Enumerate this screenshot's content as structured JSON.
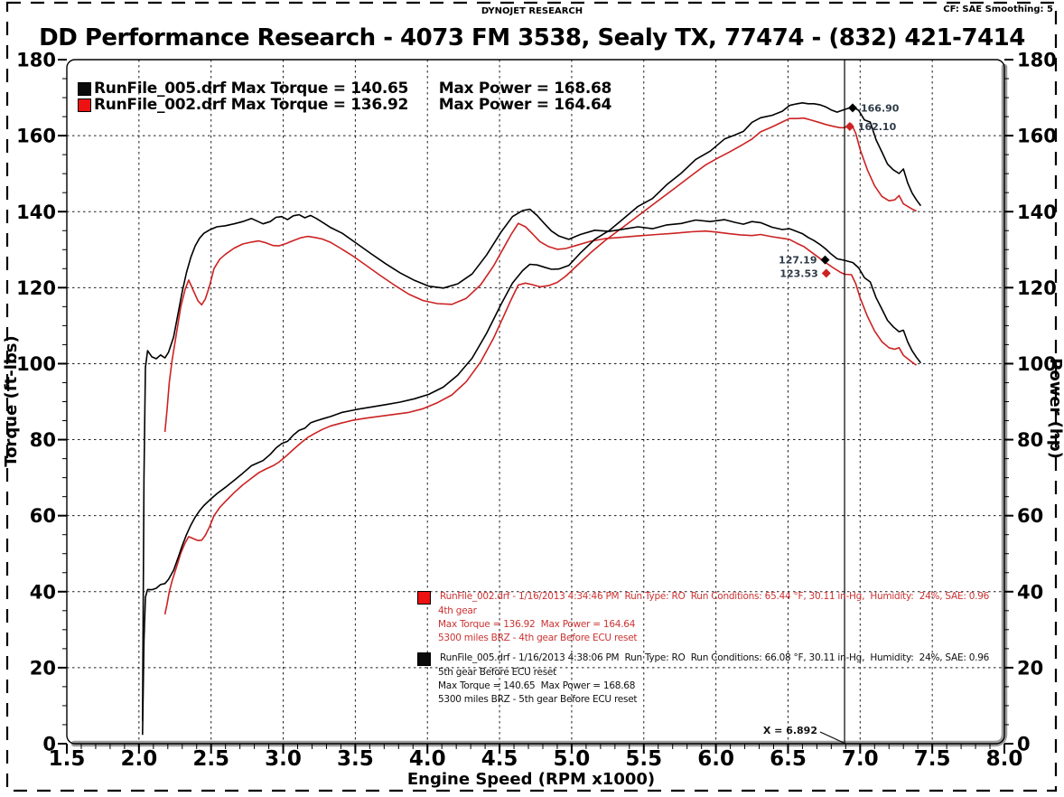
{
  "page": {
    "header_center": "DYNOJET RESEARCH",
    "header_right": "CF: SAE  Smoothing: 5",
    "title": "DD Performance Research - 4073 FM 3538, Sealy TX, 77474 - (832) 421-7414"
  },
  "chart_data": {
    "type": "line",
    "title": "DD Performance Research - 4073 FM 3538, Sealy TX, 77474 - (832) 421-7414",
    "xlabel": "Engine Speed (RPM x1000)",
    "ylabel_left": "Torque (ft-lbs)",
    "ylabel_right": "Power (hp)",
    "xlim": [
      1.5,
      8.0
    ],
    "ylim": [
      0,
      180
    ],
    "x_major_tick": 0.5,
    "x_minor_tick": 0.1,
    "y_major_tick": 20,
    "y_minor_tick": 5,
    "grid": "dashed major gridlines on",
    "legend_position": "top-left",
    "cursor": {
      "x": 6.892,
      "label": "X = 6.892"
    },
    "legend": {
      "rows": [
        {
          "swatch": "#0a0a0a",
          "text": "RunFile_005.drf Max Torque = 140.65      Max Power = 168.68"
        },
        {
          "swatch": "#ee1111",
          "text": "RunFile_002.drf Max Torque = 136.92      Max Power = 164.64"
        }
      ]
    },
    "series": [
      {
        "id": "black_torque",
        "name": "RunFile_005.drf Torque",
        "axis": "left",
        "unit": "ft-lbs",
        "color": "#000000",
        "max": 140.65,
        "points": [
          [
            2.025,
            6
          ],
          [
            2.035,
            70
          ],
          [
            2.045,
            99
          ],
          [
            2.06,
            103.4
          ],
          [
            2.09,
            101.8
          ],
          [
            2.12,
            101.3
          ],
          [
            2.15,
            102.3
          ],
          [
            2.18,
            101.5
          ],
          [
            2.205,
            103
          ],
          [
            2.24,
            107
          ],
          [
            2.27,
            113
          ],
          [
            2.3,
            119
          ],
          [
            2.33,
            124
          ],
          [
            2.36,
            128
          ],
          [
            2.39,
            131
          ],
          [
            2.42,
            133
          ],
          [
            2.45,
            134.3
          ],
          [
            2.49,
            135.2
          ],
          [
            2.54,
            136
          ],
          [
            2.6,
            136.3
          ],
          [
            2.66,
            136.8
          ],
          [
            2.72,
            137.4
          ],
          [
            2.78,
            138.2
          ],
          [
            2.82,
            137.5
          ],
          [
            2.86,
            136.8
          ],
          [
            2.91,
            137.4
          ],
          [
            2.95,
            138.5
          ],
          [
            2.99,
            138.7
          ],
          [
            3.03,
            137.9
          ],
          [
            3.07,
            138.9
          ],
          [
            3.11,
            139.2
          ],
          [
            3.15,
            138.4
          ],
          [
            3.19,
            139
          ],
          [
            3.23,
            138.2
          ],
          [
            3.28,
            137
          ],
          [
            3.33,
            135.8
          ],
          [
            3.41,
            134.3
          ],
          [
            3.51,
            131.6
          ],
          [
            3.61,
            128.9
          ],
          [
            3.71,
            126.3
          ],
          [
            3.81,
            123.9
          ],
          [
            3.91,
            121.9
          ],
          [
            4.01,
            120.4
          ],
          [
            4.11,
            119.9
          ],
          [
            4.21,
            121
          ],
          [
            4.31,
            123.6
          ],
          [
            4.41,
            128.6
          ],
          [
            4.51,
            134.6
          ],
          [
            4.59,
            138.7
          ],
          [
            4.66,
            140.3
          ],
          [
            4.71,
            140.65
          ],
          [
            4.76,
            139
          ],
          [
            4.81,
            136.9
          ],
          [
            4.86,
            134.9
          ],
          [
            4.91,
            133.6
          ],
          [
            4.98,
            132.7
          ],
          [
            5.06,
            134
          ],
          [
            5.16,
            135.1
          ],
          [
            5.26,
            134.8
          ],
          [
            5.36,
            135.4
          ],
          [
            5.46,
            136
          ],
          [
            5.56,
            135.5
          ],
          [
            5.66,
            136.5
          ],
          [
            5.76,
            136.9
          ],
          [
            5.86,
            137.8
          ],
          [
            5.96,
            137.4
          ],
          [
            6.06,
            137.9
          ],
          [
            6.13,
            137.2
          ],
          [
            6.19,
            136.7
          ],
          [
            6.25,
            137.4
          ],
          [
            6.31,
            137.1
          ],
          [
            6.39,
            135.9
          ],
          [
            6.46,
            135.3
          ],
          [
            6.51,
            135.5
          ],
          [
            6.56,
            134.8
          ],
          [
            6.6,
            134.2
          ],
          [
            6.64,
            133.2
          ],
          [
            6.68,
            132.4
          ],
          [
            6.72,
            131.4
          ],
          [
            6.76,
            130.2
          ],
          [
            6.8,
            128.8
          ],
          [
            6.84,
            127.6
          ],
          [
            6.892,
            127.19
          ],
          [
            6.95,
            126.6
          ],
          [
            6.99,
            125.2
          ],
          [
            7.03,
            122.6
          ],
          [
            7.07,
            121.5
          ],
          [
            7.11,
            117.4
          ],
          [
            7.15,
            114.4
          ],
          [
            7.19,
            111.4
          ],
          [
            7.23,
            109.7
          ],
          [
            7.27,
            108.4
          ],
          [
            7.3,
            108.8
          ],
          [
            7.33,
            105.7
          ],
          [
            7.36,
            103.4
          ],
          [
            7.39,
            101.7
          ],
          [
            7.42,
            100.2
          ]
        ]
      },
      {
        "id": "red_torque",
        "name": "RunFile_002.drf Torque",
        "axis": "left",
        "unit": "ft-lbs",
        "color": "#cc2222",
        "max": 136.92,
        "points": [
          [
            2.18,
            82
          ],
          [
            2.195,
            88
          ],
          [
            2.21,
            95
          ],
          [
            2.23,
            101
          ],
          [
            2.26,
            108
          ],
          [
            2.29,
            115
          ],
          [
            2.32,
            119.5
          ],
          [
            2.345,
            122
          ],
          [
            2.38,
            119
          ],
          [
            2.41,
            116.5
          ],
          [
            2.435,
            115.5
          ],
          [
            2.46,
            117
          ],
          [
            2.49,
            120.5
          ],
          [
            2.52,
            125
          ],
          [
            2.56,
            127.5
          ],
          [
            2.6,
            128.8
          ],
          [
            2.66,
            130.4
          ],
          [
            2.72,
            131.5
          ],
          [
            2.78,
            132
          ],
          [
            2.83,
            132.3
          ],
          [
            2.88,
            131.8
          ],
          [
            2.93,
            131.1
          ],
          [
            2.97,
            131
          ],
          [
            3.02,
            131.6
          ],
          [
            3.07,
            132.4
          ],
          [
            3.12,
            133.1
          ],
          [
            3.17,
            133.5
          ],
          [
            3.22,
            133.2
          ],
          [
            3.27,
            132.8
          ],
          [
            3.33,
            131.9
          ],
          [
            3.4,
            130.3
          ],
          [
            3.48,
            128.4
          ],
          [
            3.57,
            126
          ],
          [
            3.67,
            123.3
          ],
          [
            3.77,
            120.7
          ],
          [
            3.87,
            118.3
          ],
          [
            3.97,
            116.6
          ],
          [
            4.07,
            115.8
          ],
          [
            4.17,
            115.6
          ],
          [
            4.27,
            117.2
          ],
          [
            4.37,
            120.8
          ],
          [
            4.46,
            125.8
          ],
          [
            4.53,
            130.6
          ],
          [
            4.58,
            134
          ],
          [
            4.63,
            136.92
          ],
          [
            4.68,
            136
          ],
          [
            4.73,
            134.1
          ],
          [
            4.78,
            132.1
          ],
          [
            4.84,
            130.8
          ],
          [
            4.9,
            130.1
          ],
          [
            4.96,
            130.3
          ],
          [
            5.03,
            131.1
          ],
          [
            5.13,
            132.2
          ],
          [
            5.23,
            132.9
          ],
          [
            5.33,
            133.2
          ],
          [
            5.46,
            133.6
          ],
          [
            5.59,
            134
          ],
          [
            5.71,
            134.3
          ],
          [
            5.83,
            134.7
          ],
          [
            5.93,
            134.9
          ],
          [
            6.01,
            134.6
          ],
          [
            6.09,
            134.2
          ],
          [
            6.17,
            133.9
          ],
          [
            6.25,
            133.7
          ],
          [
            6.31,
            134
          ],
          [
            6.39,
            133.4
          ],
          [
            6.46,
            133
          ],
          [
            6.51,
            132.7
          ],
          [
            6.56,
            131.7
          ],
          [
            6.61,
            130.8
          ],
          [
            6.66,
            129.4
          ],
          [
            6.71,
            128
          ],
          [
            6.76,
            126.6
          ],
          [
            6.81,
            125.3
          ],
          [
            6.86,
            124.1
          ],
          [
            6.892,
            123.53
          ],
          [
            6.94,
            123.4
          ],
          [
            6.97,
            121
          ],
          [
            7.0,
            117.3
          ],
          [
            7.05,
            112.5
          ],
          [
            7.1,
            108.6
          ],
          [
            7.15,
            105.8
          ],
          [
            7.2,
            104.2
          ],
          [
            7.24,
            103.8
          ],
          [
            7.27,
            104.2
          ],
          [
            7.3,
            102.2
          ],
          [
            7.33,
            101.3
          ],
          [
            7.36,
            100.4
          ],
          [
            7.39,
            99.6
          ]
        ]
      },
      {
        "id": "black_power",
        "name": "RunFile_005.drf Power",
        "axis": "right",
        "unit": "hp",
        "color": "#000000",
        "max": 168.68,
        "derived_from": "black_torque",
        "formula": "hp = ft_lbs * rpm_x1000 / 5.252"
      },
      {
        "id": "red_power",
        "name": "RunFile_002.drf Power",
        "axis": "right",
        "unit": "hp",
        "color": "#cc2222",
        "max": 164.64,
        "derived_from": "red_torque",
        "formula": "hp = ft_lbs * rpm_x1000 / 5.252"
      }
    ],
    "markers": [
      {
        "label": "166.90",
        "rpm": 6.948,
        "value": 167.3,
        "color": "#000000",
        "label_side": "right"
      },
      {
        "label": "162.10",
        "rpm": 6.928,
        "value": 162.4,
        "color": "#cc2222",
        "label_side": "right"
      },
      {
        "label": "127.19",
        "rpm": 6.757,
        "value": 127.3,
        "color": "#000000",
        "label_side": "left"
      },
      {
        "label": "123.53",
        "rpm": 6.765,
        "value": 123.8,
        "color": "#cc2222",
        "label_side": "left"
      }
    ],
    "annotations": [
      {
        "color": "#cc3333",
        "swatch": "#ee1111",
        "lines": [
          "RunFile_002.drf - 1/16/2013 4:34:46 PM  Run Type: RO  Run Conditions: 65.44 °F, 30.11 in-Hg,  Humidity:  24%, SAE: 0.96",
          "4th gear",
          "Max Torque = 136.92  Max Power = 164.64",
          "5300 miles BRZ - 4th gear Before ECU reset"
        ]
      },
      {
        "color": "#111111",
        "swatch": "#0a0a0a",
        "lines": [
          "RunFile_005.drf - 1/16/2013 4:38:06 PM  Run Type: RO  Run Conditions: 66.08 °F, 30.11 in-Hg,  Humidity:  24%, SAE: 0.96",
          "5th gear Before ECU reset",
          "Max Torque = 140.65  Max Power = 168.68",
          "5300 miles BRZ - 5th gear Before ECU reset"
        ]
      }
    ]
  }
}
